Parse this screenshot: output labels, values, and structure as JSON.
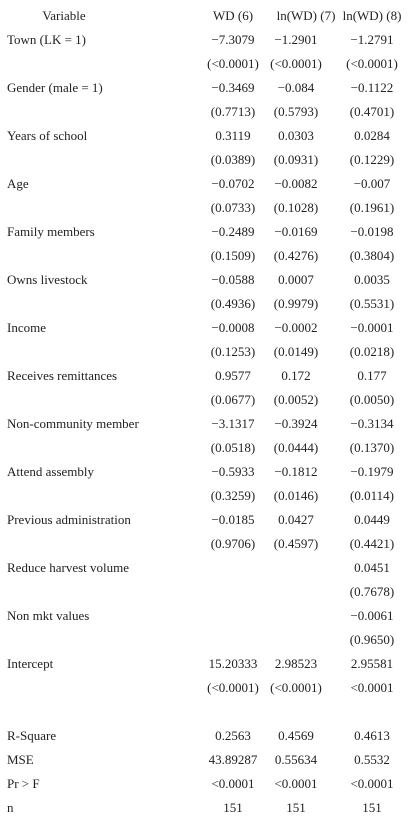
{
  "table": {
    "header": [
      "Variable",
      "WD (6)",
      "ln(WD) (7)",
      "ln(WD) (8)"
    ],
    "rows": [
      [
        "Town (LK = 1)",
        "−7.3079",
        "−1.2901",
        "−1.2791"
      ],
      [
        null,
        "(<0.0001)",
        "(<0.0001)",
        "(<0.0001)"
      ],
      [
        "Gender (male = 1)",
        "−0.3469",
        "−0.084",
        "−0.1122"
      ],
      [
        null,
        "(0.7713)",
        "(0.5793)",
        "(0.4701)"
      ],
      [
        "Years of school",
        "0.3119",
        "0.0303",
        "0.0284"
      ],
      [
        null,
        "(0.0389)",
        "(0.0931)",
        "(0.1229)"
      ],
      [
        "Age",
        "−0.0702",
        "−0.0082",
        "−0.007"
      ],
      [
        null,
        "(0.0733)",
        "(0.1028)",
        "(0.1961)"
      ],
      [
        "Family members",
        "−0.2489",
        "−0.0169",
        "−0.0198"
      ],
      [
        null,
        "(0.1509)",
        "(0.4276)",
        "(0.3804)"
      ],
      [
        "Owns livestock",
        "−0.0588",
        "0.0007",
        "0.0035"
      ],
      [
        null,
        "(0.4936)",
        "(0.9979)",
        "(0.5531)"
      ],
      [
        "Income",
        "−0.0008",
        "−0.0002",
        "−0.0001"
      ],
      [
        null,
        "(0.1253)",
        "(0.0149)",
        "(0.0218)"
      ],
      [
        "Receives remittances",
        "0.9577",
        "0.172",
        "0.177"
      ],
      [
        null,
        "(0.0677)",
        "(0.0052)",
        "(0.0050)"
      ],
      [
        "Non-community member",
        "−3.1317",
        "−0.3924",
        "−0.3134"
      ],
      [
        null,
        "(0.0518)",
        "(0.0444)",
        "(0.1370)"
      ],
      [
        "Attend assembly",
        "−0.5933",
        "−0.1812",
        "−0.1979"
      ],
      [
        null,
        "(0.3259)",
        "(0.0146)",
        "(0.0114)"
      ],
      [
        "Previous administration",
        "−0.0185",
        "0.0427",
        "0.0449"
      ],
      [
        null,
        "(0.9706)",
        "(0.4597)",
        "(0.4421)"
      ],
      [
        "Reduce harvest volume",
        null,
        null,
        "0.0451"
      ],
      [
        null,
        null,
        null,
        "(0.7678)"
      ],
      [
        "Non mkt values",
        null,
        null,
        "−0.0061"
      ],
      [
        null,
        null,
        null,
        "(0.9650)"
      ],
      [
        "Intercept",
        "15.20333",
        "2.98523",
        "2.95581"
      ],
      [
        null,
        "(<0.0001)",
        "(<0.0001)",
        "<0.0001"
      ]
    ],
    "stats": [
      [
        "R-Square",
        "0.2563",
        "0.4569",
        "0.4613"
      ],
      [
        "MSE",
        "43.89287",
        "0.55634",
        "0.5532"
      ],
      [
        "Pr > F",
        "<0.0001",
        "<0.0001",
        "<0.0001"
      ],
      [
        "n",
        "151",
        "151",
        "151"
      ]
    ]
  }
}
